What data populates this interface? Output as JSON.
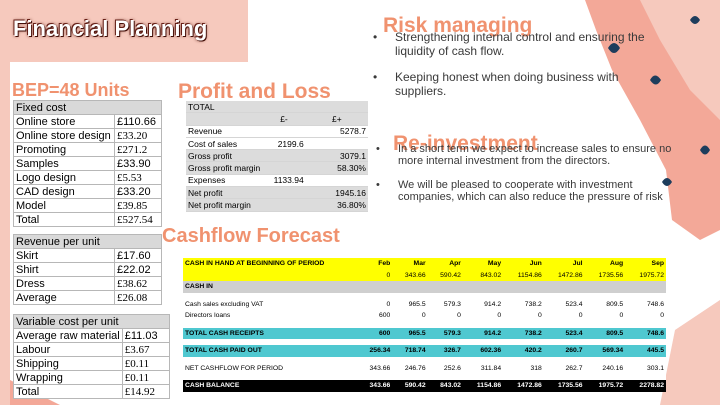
{
  "title": "Financial Planning",
  "bep_title": "BEP=48 Units",
  "pl_title": "Profit and Loss",
  "risk_title": "Risk managing",
  "reinv_title": "Re-investment",
  "cashflow_title": "Cashflow Forecast",
  "fixed_cost": {
    "header": "Fixed cost",
    "rows": [
      {
        "label": "Online store",
        "value": "£110.66"
      },
      {
        "label": "Online store design",
        "value": "£33.20"
      },
      {
        "label": "Promoting",
        "value": "£271.2"
      },
      {
        "label": "Samples",
        "value": "£33.90"
      },
      {
        "label": "Logo design",
        "value": "£5.53"
      },
      {
        "label": "CAD design",
        "value": "£33.20"
      },
      {
        "label": "Model",
        "value": "£39.85"
      },
      {
        "label": "Total",
        "value": "£527.54"
      }
    ]
  },
  "revenue": {
    "header": "Revenue per unit",
    "rows": [
      {
        "label": "Skirt",
        "value": "£17.60"
      },
      {
        "label": "Shirt",
        "value": "£22.02"
      },
      {
        "label": "Dress",
        "value": "£38.62"
      },
      {
        "label": "Average",
        "value": "£26.08"
      }
    ]
  },
  "variable": {
    "header": "Variable cost per unit",
    "rows": [
      {
        "label": "Average raw material",
        "value": "£11.03"
      },
      {
        "label": "Labour",
        "value": "£3.67"
      },
      {
        "label": "Shipping",
        "value": "£0.11"
      },
      {
        "label": "Wrapping",
        "value": "£0.11"
      },
      {
        "label": "Total",
        "value": "£14.92"
      }
    ]
  },
  "pl": {
    "header": "TOTAL",
    "col_a": "£-",
    "col_b": "£+",
    "rows": [
      {
        "label": "Revenue",
        "a": "",
        "b": "5278.7"
      },
      {
        "label": "Cost of sales",
        "a": "2199.6",
        "b": ""
      },
      {
        "label": "Gross profit",
        "a": "",
        "b": "3079.1"
      },
      {
        "label": "Gross profit margin",
        "a": "",
        "b": "58.30%"
      },
      {
        "label": "Expenses",
        "a": "1133.94",
        "b": ""
      },
      {
        "label": "Net profit",
        "a": "",
        "b": "1945.16"
      },
      {
        "label": "Net profit margin",
        "a": "",
        "b": "36.80%"
      }
    ]
  },
  "risk_bullets": [
    "Strengthening internal control and ensuring the liquidity of cash flow.",
    "Keeping honest when doing business with suppliers."
  ],
  "reinv_bullets": [
    "In a short term we expect to increase sales to ensure no more internal investment from the directors.",
    "We will be pleased to cooperate with investment companies, which can also reduce the pressure of risk"
  ],
  "bullet_char": "•",
  "cashflow": {
    "header_label": "CASH IN HAND AT BEGINNING OF PERIOD",
    "months": [
      "Feb",
      "Mar",
      "Apr",
      "May",
      "Jun",
      "Jul",
      "Aug",
      "Sep"
    ],
    "opening": [
      "0",
      "343.66",
      "590.42",
      "843.02",
      "1154.86",
      "1472.86",
      "1735.56",
      "1975.72"
    ],
    "cash_in_label": "CASH IN",
    "sales_label": "Cash sales excluding VAT",
    "sales": [
      "0",
      "965.5",
      "579.3",
      "914.2",
      "738.2",
      "523.4",
      "809.5",
      "748.6"
    ],
    "loans_label": "Directors loans",
    "loans": [
      "600",
      "0",
      "0",
      "0",
      "0",
      "0",
      "0",
      "0"
    ],
    "receipts_label": "TOTAL CASH RECEIPTS",
    "receipts": [
      "600",
      "965.5",
      "579.3",
      "914.2",
      "738.2",
      "523.4",
      "809.5",
      "748.6"
    ],
    "paid_label": "TOTAL CASH PAID OUT",
    "paid": [
      "256.34",
      "718.74",
      "326.7",
      "602.36",
      "420.2",
      "260.7",
      "569.34",
      "445.5"
    ],
    "net_label": "NET CASHFLOW FOR PERIOD",
    "net": [
      "343.66",
      "246.76",
      "252.6",
      "311.84",
      "318",
      "262.7",
      "240.16",
      "303.1"
    ],
    "balance_label": "CASH BALANCE",
    "balance": [
      "343.66",
      "590.42",
      "843.02",
      "1154.86",
      "1472.86",
      "1735.56",
      "1975.72",
      "2278.82"
    ]
  },
  "colors": {
    "accent": "#f0926f",
    "pink": "#f6c9bd",
    "dark_blue": "#1e3d5c",
    "teal": "#4fc8d0",
    "yellow": "#ffff00"
  }
}
